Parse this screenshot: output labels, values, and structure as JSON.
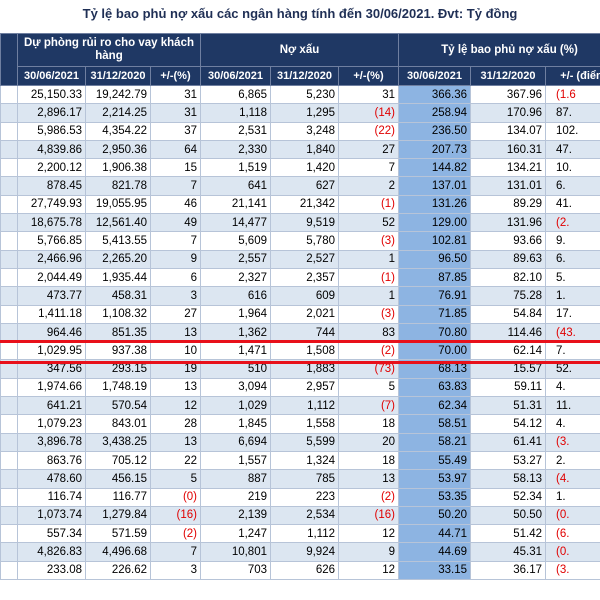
{
  "title": "Tỷ lệ bao phủ nợ xấu các ngân hàng tính đến 30/06/2021. Đvt: Tỷ đồng",
  "table": {
    "groups": [
      "Dự phòng rủi ro cho vay khách hàng",
      "Nợ xấu",
      "Tỷ lệ bao phủ nợ xấu (%)"
    ],
    "subheaders": [
      "30/06/2021",
      "31/12/2020",
      "+/-(%)",
      "30/06/2021",
      "31/12/2020",
      "+/-(%)",
      "30/06/2021",
      "31/12/2020",
      "+/- (điểm"
    ],
    "rows": [
      [
        "25,150.33",
        "19,242.79",
        "31",
        "6,865",
        "5,230",
        "31",
        "366.36",
        "367.96",
        "(1.6"
      ],
      [
        "2,896.17",
        "2,214.25",
        "31",
        "1,118",
        "1,295",
        "(14)",
        "258.94",
        "170.96",
        "87."
      ],
      [
        "5,986.53",
        "4,354.22",
        "37",
        "2,531",
        "3,248",
        "(22)",
        "236.50",
        "134.07",
        "102."
      ],
      [
        "4,839.86",
        "2,950.36",
        "64",
        "2,330",
        "1,840",
        "27",
        "207.73",
        "160.31",
        "47."
      ],
      [
        "2,200.12",
        "1,906.38",
        "15",
        "1,519",
        "1,420",
        "7",
        "144.82",
        "134.21",
        "10."
      ],
      [
        "878.45",
        "821.78",
        "7",
        "641",
        "627",
        "2",
        "137.01",
        "131.01",
        "6."
      ],
      [
        "27,749.93",
        "19,055.95",
        "46",
        "21,141",
        "21,342",
        "(1)",
        "131.26",
        "89.29",
        "41."
      ],
      [
        "18,675.78",
        "12,561.40",
        "49",
        "14,477",
        "9,519",
        "52",
        "129.00",
        "131.96",
        "(2."
      ],
      [
        "5,766.85",
        "5,413.55",
        "7",
        "5,609",
        "5,780",
        "(3)",
        "102.81",
        "93.66",
        "9."
      ],
      [
        "2,466.96",
        "2,265.20",
        "9",
        "2,557",
        "2,527",
        "1",
        "96.50",
        "89.63",
        "6."
      ],
      [
        "2,044.49",
        "1,935.44",
        "6",
        "2,327",
        "2,357",
        "(1)",
        "87.85",
        "82.10",
        "5."
      ],
      [
        "473.77",
        "458.31",
        "3",
        "616",
        "609",
        "1",
        "76.91",
        "75.28",
        "1."
      ],
      [
        "1,411.18",
        "1,108.32",
        "27",
        "1,964",
        "2,021",
        "(3)",
        "71.85",
        "54.84",
        "17."
      ],
      [
        "964.46",
        "851.35",
        "13",
        "1,362",
        "744",
        "83",
        "70.80",
        "114.46",
        "(43."
      ],
      [
        "1,029.95",
        "937.38",
        "10",
        "1,471",
        "1,508",
        "(2)",
        "70.00",
        "62.14",
        "7."
      ],
      [
        "347.56",
        "293.15",
        "19",
        "510",
        "1,883",
        "(73)",
        "68.13",
        "15.57",
        "52."
      ],
      [
        "1,974.66",
        "1,748.19",
        "13",
        "3,094",
        "2,957",
        "5",
        "63.83",
        "59.11",
        "4."
      ],
      [
        "641.21",
        "570.54",
        "12",
        "1,029",
        "1,112",
        "(7)",
        "62.34",
        "51.31",
        "11."
      ],
      [
        "1,079.23",
        "843.01",
        "28",
        "1,845",
        "1,558",
        "18",
        "58.51",
        "54.12",
        "4."
      ],
      [
        "3,896.78",
        "3,438.25",
        "13",
        "6,694",
        "5,599",
        "20",
        "58.21",
        "61.41",
        "(3."
      ],
      [
        "863.76",
        "705.12",
        "22",
        "1,557",
        "1,324",
        "18",
        "55.49",
        "53.27",
        "2."
      ],
      [
        "478.60",
        "456.15",
        "5",
        "887",
        "785",
        "13",
        "53.97",
        "58.13",
        "(4."
      ],
      [
        "116.74",
        "116.77",
        "(0)",
        "219",
        "223",
        "(2)",
        "53.35",
        "52.34",
        "1."
      ],
      [
        "1,073.74",
        "1,279.84",
        "(16)",
        "2,139",
        "2,534",
        "(16)",
        "50.20",
        "50.50",
        "(0."
      ],
      [
        "557.34",
        "571.59",
        "(2)",
        "1,247",
        "1,112",
        "12",
        "44.71",
        "51.42",
        "(6."
      ],
      [
        "4,826.83",
        "4,496.68",
        "7",
        "10,801",
        "9,924",
        "9",
        "44.69",
        "45.31",
        "(0."
      ],
      [
        "233.08",
        "226.62",
        "3",
        "703",
        "626",
        "12",
        "33.15",
        "36.17",
        "(3."
      ]
    ]
  }
}
